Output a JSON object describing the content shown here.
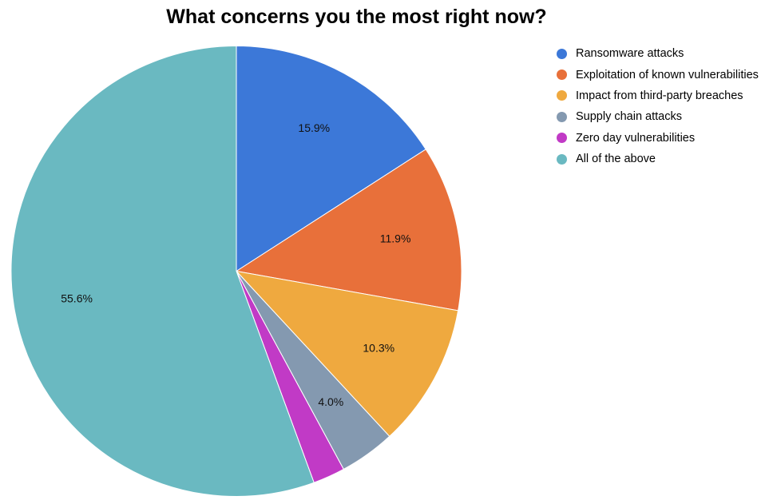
{
  "chart_data": {
    "type": "pie",
    "title": "What concerns you the most right now?",
    "legend_position": "right",
    "slices": [
      {
        "label": "Ransomware attacks",
        "value": 15.9,
        "display": "15.9%",
        "color": "#3c78d8"
      },
      {
        "label": "Exploitation of known vulnerabilities",
        "value": 11.9,
        "display": "11.9%",
        "color": "#e8703a"
      },
      {
        "label": "Impact from third-party breaches",
        "value": 10.3,
        "display": "10.3%",
        "color": "#efa93f"
      },
      {
        "label": "Supply chain attacks",
        "value": 4.0,
        "display": "4.0%",
        "color": "#8499b0"
      },
      {
        "label": "Zero day vulnerabilities",
        "value": 2.3,
        "display": "",
        "color": "#c13ac6"
      },
      {
        "label": "All of the above",
        "value": 55.6,
        "display": "55.6%",
        "color": "#6ab9c1"
      }
    ]
  }
}
